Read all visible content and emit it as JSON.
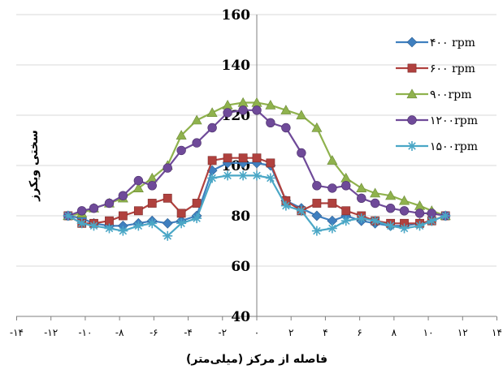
{
  "chart_data": {
    "type": "line",
    "xlabel": "فاصله از مرکز (میلی‌متر)",
    "ylabel": "سختی ویکرز",
    "xlim": [
      -14,
      14
    ],
    "ylim": [
      40,
      160
    ],
    "y_ticks": [
      "40",
      "60",
      "80",
      "100",
      "120",
      "140",
      "160"
    ],
    "x_ticks": [
      {
        "value": -14,
        "label": "-۱۴"
      },
      {
        "value": -12,
        "label": "-۱۲"
      },
      {
        "value": -10,
        "label": "-۱۰"
      },
      {
        "value": -8,
        "label": "-۸"
      },
      {
        "value": -6,
        "label": "-۶"
      },
      {
        "value": -4,
        "label": "-۴"
      },
      {
        "value": -2,
        "label": "-۲"
      },
      {
        "value": 0,
        "label": "۰"
      },
      {
        "value": 2,
        "label": "۲"
      },
      {
        "value": 4,
        "label": "۴"
      },
      {
        "value": 6,
        "label": "۶"
      },
      {
        "value": 8,
        "label": "۸"
      },
      {
        "value": 10,
        "label": "۱۰"
      },
      {
        "value": 12,
        "label": "۱۲"
      },
      {
        "value": 14,
        "label": "۱۴"
      }
    ],
    "legend_position": "right",
    "x": [
      -11,
      -10.2,
      -9.5,
      -8.6,
      -7.8,
      -6.9,
      -6.1,
      -5.2,
      -4.4,
      -3.5,
      -2.6,
      -1.7,
      -0.8,
      0,
      0.8,
      1.7,
      2.6,
      3.5,
      4.4,
      5.2,
      6.1,
      6.9,
      7.8,
      8.6,
      9.5,
      10.2,
      11
    ],
    "series": [
      {
        "name": "۴۰۰ rpm",
        "color": "#3f7fbf",
        "marker": "diamond",
        "values": [
          80,
          79,
          77,
          76,
          76,
          77,
          78,
          77,
          78,
          80,
          98,
          101,
          101,
          101,
          100,
          86,
          83,
          80,
          78,
          80,
          78,
          77,
          76,
          76,
          77,
          78,
          80
        ]
      },
      {
        "name": "۶۰۰ rpm",
        "color": "#b0413e",
        "marker": "square",
        "values": [
          80,
          77,
          77,
          78,
          80,
          82,
          85,
          87,
          81,
          85,
          102,
          103,
          103,
          103,
          101,
          86,
          82,
          85,
          85,
          82,
          80,
          78,
          77,
          77,
          77,
          78,
          80
        ]
      },
      {
        "name": "۹۰۰rpm",
        "color": "#8fb24d",
        "marker": "triangle",
        "values": [
          80,
          81,
          83,
          85,
          87,
          91,
          95,
          100,
          112,
          118,
          121,
          124,
          125,
          125,
          124,
          122,
          120,
          115,
          102,
          95,
          91,
          89,
          88,
          86,
          84,
          82,
          80
        ]
      },
      {
        "name": "۱۲۰۰rpm",
        "color": "#6f4a99",
        "marker": "circle",
        "values": [
          80,
          82,
          83,
          85,
          88,
          94,
          92,
          99,
          106,
          109,
          115,
          121,
          122,
          122,
          117,
          115,
          105,
          92,
          91,
          92,
          87,
          85,
          83,
          82,
          81,
          81,
          80
        ]
      },
      {
        "name": "۱۵۰۰rpm",
        "color": "#4aa7c6",
        "marker": "star",
        "values": [
          80,
          77,
          76,
          75,
          74,
          76,
          77,
          72,
          77,
          79,
          95,
          96,
          96,
          96,
          95,
          84,
          82,
          74,
          75,
          78,
          79,
          78,
          76,
          75,
          76,
          78,
          80
        ]
      }
    ]
  }
}
